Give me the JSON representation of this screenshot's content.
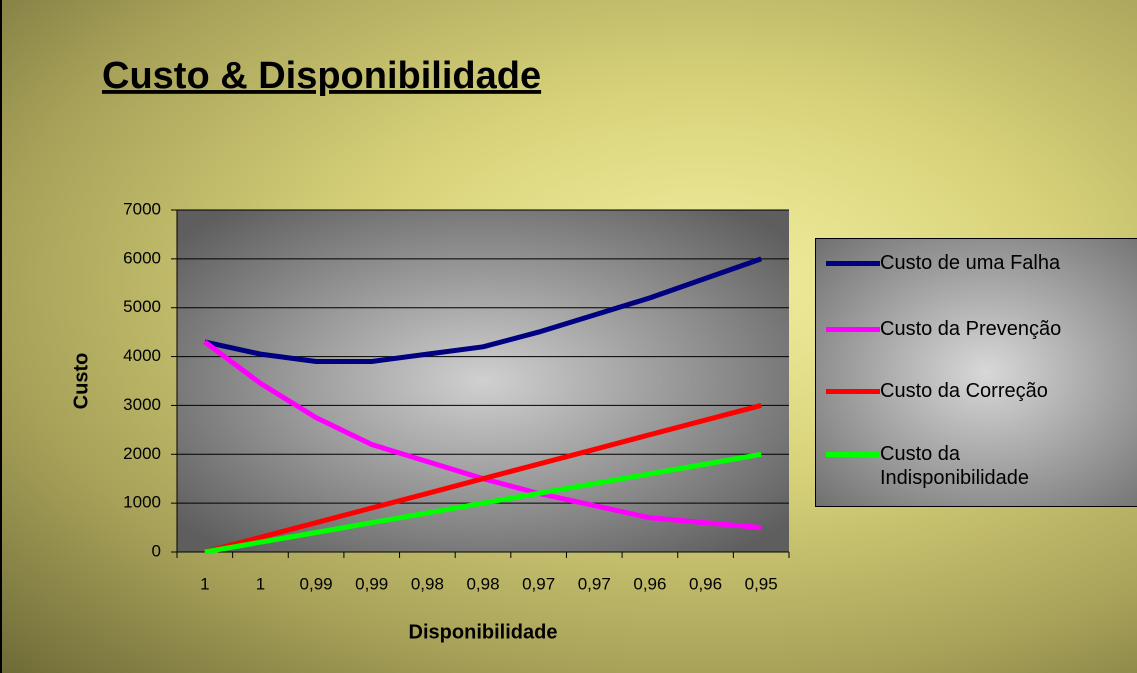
{
  "chart_data": {
    "type": "line",
    "title": "Custo & Disponibilidade",
    "x_label": "Disponibilidade",
    "y_label": "Custo",
    "categories": [
      "1",
      "1",
      "0,99",
      "0,99",
      "0,98",
      "0,98",
      "0,97",
      "0,97",
      "0,96",
      "0,96",
      "0,95"
    ],
    "series": [
      {
        "name": "Custo de uma Falha",
        "color": "#000080",
        "values": [
          4300,
          4050,
          3900,
          3900,
          4050,
          4200,
          4500,
          4850,
          5200,
          5600,
          6000
        ]
      },
      {
        "name": "Custo da Prevenção",
        "color": "#ff00ff",
        "values": [
          4300,
          3450,
          2750,
          2200,
          1850,
          1500,
          1200,
          950,
          700,
          600,
          500
        ]
      },
      {
        "name": "Custo da Correção",
        "color": "#ff0000",
        "values": [
          0,
          300,
          600,
          900,
          1200,
          1500,
          1800,
          2100,
          2400,
          2700,
          3000
        ]
      },
      {
        "name": "Custo da Indisponibilidade",
        "color": "#00ff00",
        "values": [
          0,
          200,
          400,
          600,
          800,
          1000,
          1200,
          1400,
          1600,
          1800,
          2000
        ]
      }
    ],
    "ylim": [
      0,
      7000
    ],
    "yticks": [
      0,
      1000,
      2000,
      3000,
      4000,
      5000,
      6000,
      7000
    ],
    "grid": true,
    "legend": "right"
  }
}
